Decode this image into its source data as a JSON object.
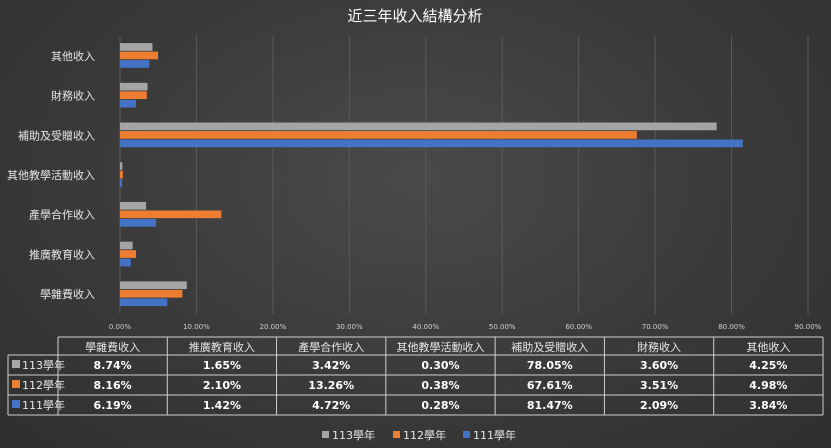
{
  "chart_data": {
    "type": "bar",
    "orientation": "horizontal",
    "title": "近三年收入結構分析",
    "categories": [
      "學雜費收入",
      "推廣教育收入",
      "產學合作收入",
      "其他教學活動收入",
      "補助及受贈收入",
      "財務收入",
      "其他收入"
    ],
    "series": [
      {
        "name": "113學年",
        "color": "#a5a5a5",
        "values": [
          8.74,
          1.65,
          3.42,
          0.3,
          78.05,
          3.6,
          4.25
        ],
        "labels": [
          "8.74%",
          "1.65%",
          "3.42%",
          "0.30%",
          "78.05%",
          "3.60%",
          "4.25%"
        ]
      },
      {
        "name": "112學年",
        "color": "#ed7d31",
        "values": [
          8.16,
          2.1,
          13.26,
          0.38,
          67.61,
          3.51,
          4.98
        ],
        "labels": [
          "8.16%",
          "2.10%",
          "13.26%",
          "0.38%",
          "67.61%",
          "3.51%",
          "4.98%"
        ]
      },
      {
        "name": "111學年",
        "color": "#4472c4",
        "values": [
          6.19,
          1.42,
          4.72,
          0.28,
          81.47,
          2.09,
          3.84
        ],
        "labels": [
          "6.19%",
          "1.42%",
          "4.72%",
          "0.28%",
          "81.47%",
          "2.09%",
          "3.84%"
        ]
      }
    ],
    "xlim": [
      0,
      90
    ],
    "x_ticks": [
      "0.00%",
      "10.00%",
      "20.00%",
      "30.00%",
      "40.00%",
      "50.00%",
      "60.00%",
      "70.00%",
      "80.00%",
      "90.00%"
    ],
    "grid": true,
    "legend": "bottom",
    "data_table": true
  }
}
